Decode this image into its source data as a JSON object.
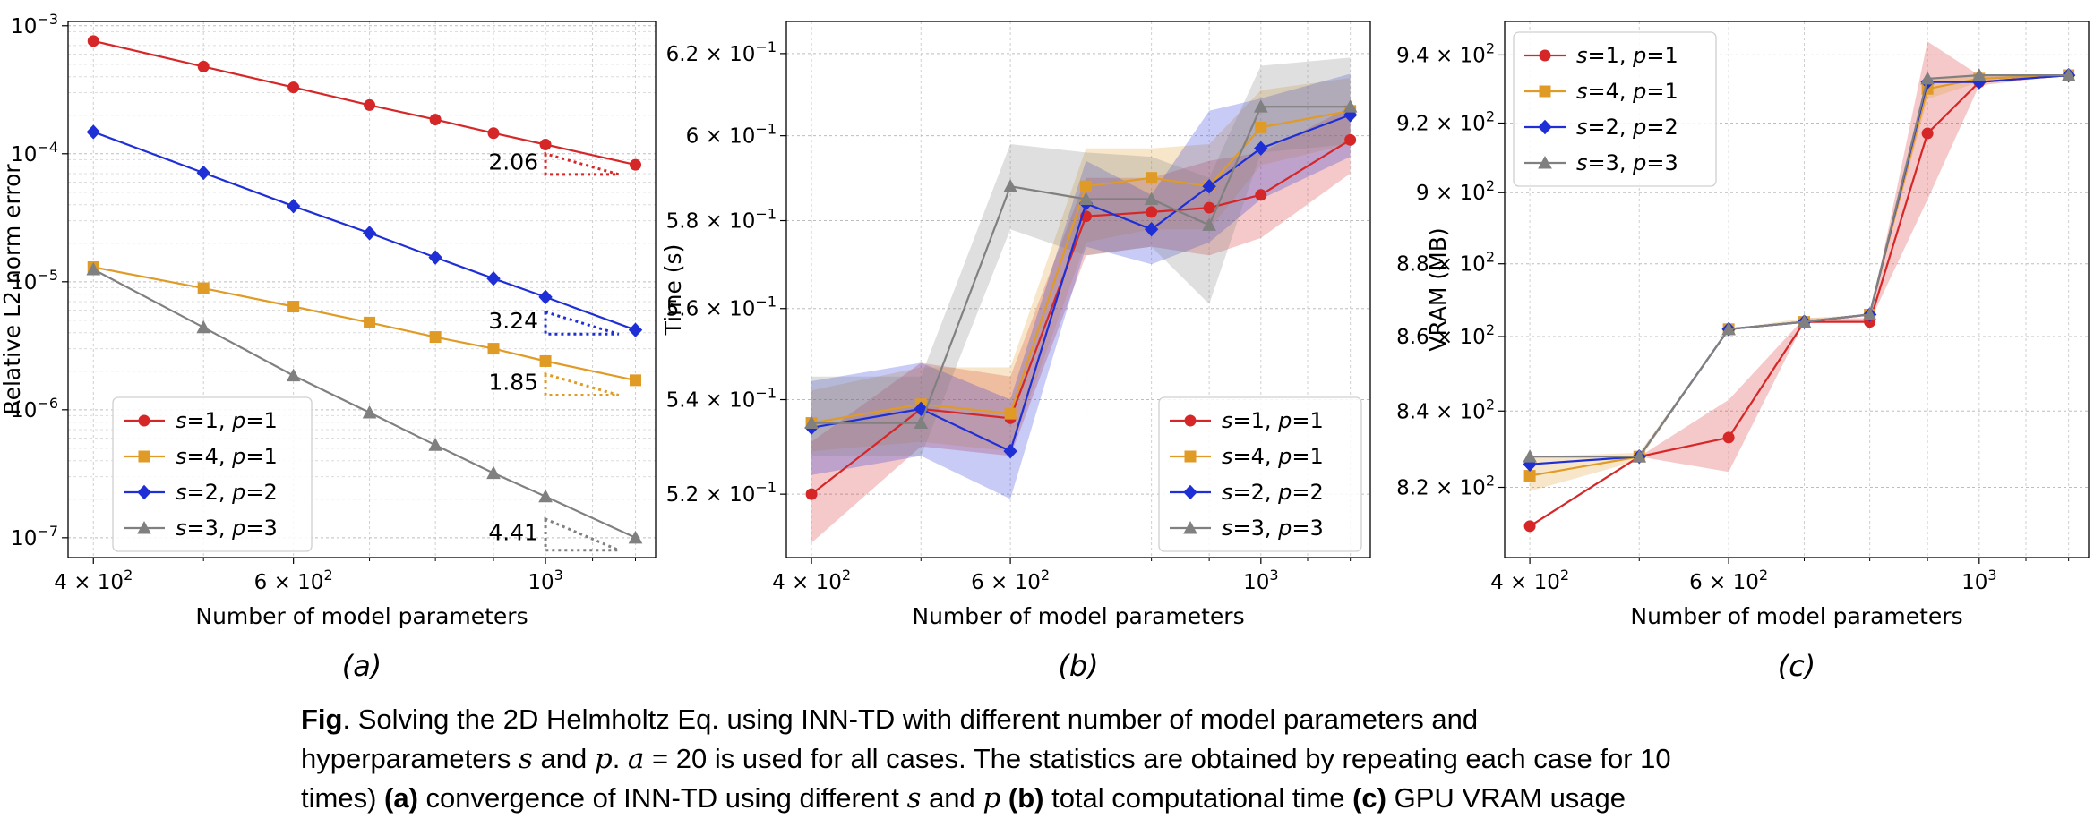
{
  "chart_data": [
    {
      "type": "line",
      "panel_label": "(a)",
      "xlabel": "Number of model parameters",
      "ylabel": "Relative L2 norm error",
      "xscale": "log",
      "yscale": "log",
      "xlim": [
        380,
        1250
      ],
      "ylim": [
        7e-08,
        0.00108
      ],
      "xticks": [
        {
          "v": 400,
          "m": "4",
          "e": "2"
        },
        {
          "v": 600,
          "m": "6",
          "e": "2"
        },
        {
          "v": 1000,
          "m": "",
          "e": "3"
        }
      ],
      "yticks": [
        {
          "v": 1e-07,
          "m": "",
          "e": "−7"
        },
        {
          "v": 1e-06,
          "m": "",
          "e": "−6"
        },
        {
          "v": 1e-05,
          "m": "",
          "e": "−5"
        },
        {
          "v": 0.0001,
          "m": "",
          "e": "−4"
        },
        {
          "v": 0.001,
          "m": "",
          "e": "−3"
        }
      ],
      "grid": true,
      "minor_grid_y": true,
      "legend_position": "lower-left",
      "x": [
        400,
        500,
        600,
        700,
        800,
        900,
        1000,
        1200
      ],
      "series": [
        {
          "name": "s=1, p=1",
          "s": "1",
          "p": "1",
          "color": "#d62728",
          "marker": "circle",
          "values": [
            0.00076,
            0.00048,
            0.00033,
            0.00024,
            0.000185,
            0.000145,
            0.000118,
            8.2e-05
          ]
        },
        {
          "name": "s=4, p=1",
          "s": "4",
          "p": "1",
          "color": "#e09b26",
          "marker": "square",
          "values": [
            1.3e-05,
            8.9e-06,
            6.4e-06,
            4.8e-06,
            3.7e-06,
            3e-06,
            2.4e-06,
            1.7e-06
          ]
        },
        {
          "name": "s=2, p=2",
          "s": "2",
          "p": "2",
          "color": "#1f2fd6",
          "marker": "diamond",
          "values": [
            0.000148,
            7.1e-05,
            3.9e-05,
            2.4e-05,
            1.55e-05,
            1.06e-05,
            7.6e-06,
            4.2e-06
          ]
        },
        {
          "name": "s=3, p=3",
          "s": "3",
          "p": "3",
          "color": "#808080",
          "marker": "triangle",
          "values": [
            1.25e-05,
            4.4e-06,
            1.85e-06,
            9.5e-07,
            5.3e-07,
            3.2e-07,
            2.1e-07,
            1e-07
          ]
        }
      ],
      "slope_annotations": [
        {
          "text": "2.06",
          "series": 0,
          "y_top": 0.0001,
          "y_bottom": 6.9e-05
        },
        {
          "text": "3.24",
          "series": 2,
          "y_top": 5.8e-06,
          "y_bottom": 3.9e-06
        },
        {
          "text": "1.85",
          "series": 1,
          "y_top": 1.9e-06,
          "y_bottom": 1.3e-06
        },
        {
          "text": "4.41",
          "series": 3,
          "y_top": 1.4e-07,
          "y_bottom": 8e-08
        }
      ]
    },
    {
      "type": "line",
      "panel_label": "(b)",
      "xlabel": "Number of model parameters",
      "ylabel": "Time (s)",
      "xscale": "log",
      "yscale": "log",
      "xlim": [
        380,
        1250
      ],
      "ylim": [
        0.507,
        0.628
      ],
      "xticks": [
        {
          "v": 400,
          "m": "4",
          "e": "2"
        },
        {
          "v": 600,
          "m": "6",
          "e": "2"
        },
        {
          "v": 1000,
          "m": "",
          "e": "3"
        }
      ],
      "yticks": [
        {
          "v": 0.52,
          "m": "5.2",
          "e": "−1"
        },
        {
          "v": 0.54,
          "m": "5.4",
          "e": "−1"
        },
        {
          "v": 0.56,
          "m": "5.6",
          "e": "−1"
        },
        {
          "v": 0.58,
          "m": "5.8",
          "e": "−1"
        },
        {
          "v": 0.6,
          "m": "6",
          "e": "−1"
        },
        {
          "v": 0.62,
          "m": "6.2",
          "e": "−1"
        }
      ],
      "grid": true,
      "legend_position": "lower-right",
      "x": [
        400,
        500,
        600,
        700,
        800,
        900,
        1000,
        1200
      ],
      "series": [
        {
          "name": "s=1, p=1",
          "s": "1",
          "p": "1",
          "color": "#d62728",
          "marker": "circle",
          "values": [
            0.52,
            0.538,
            0.536,
            0.581,
            0.582,
            0.583,
            0.586,
            0.599
          ],
          "lower": [
            0.51,
            0.53,
            0.528,
            0.572,
            0.574,
            0.572,
            0.576,
            0.591
          ],
          "upper": [
            0.531,
            0.548,
            0.545,
            0.59,
            0.59,
            0.594,
            0.596,
            0.607
          ]
        },
        {
          "name": "s=4, p=1",
          "s": "4",
          "p": "1",
          "color": "#e09b26",
          "marker": "square",
          "values": [
            0.535,
            0.539,
            0.537,
            0.588,
            0.59,
            0.588,
            0.602,
            0.606
          ],
          "lower": [
            0.529,
            0.531,
            0.529,
            0.575,
            0.578,
            0.578,
            0.593,
            0.598
          ],
          "upper": [
            0.542,
            0.547,
            0.547,
            0.597,
            0.597,
            0.598,
            0.611,
            0.614
          ]
        },
        {
          "name": "s=2, p=2",
          "s": "2",
          "p": "2",
          "color": "#1f2fd6",
          "marker": "diamond",
          "values": [
            0.534,
            0.538,
            0.529,
            0.584,
            0.578,
            0.588,
            0.597,
            0.605
          ],
          "lower": [
            0.524,
            0.528,
            0.519,
            0.574,
            0.57,
            0.575,
            0.585,
            0.595
          ],
          "upper": [
            0.544,
            0.548,
            0.54,
            0.594,
            0.586,
            0.606,
            0.609,
            0.615
          ]
        },
        {
          "name": "s=3, p=3",
          "s": "3",
          "p": "3",
          "color": "#808080",
          "marker": "triangle",
          "values": [
            0.535,
            0.535,
            0.588,
            0.585,
            0.585,
            0.579,
            0.607,
            0.607
          ],
          "lower": [
            0.528,
            0.528,
            0.578,
            0.572,
            0.574,
            0.561,
            0.596,
            0.598
          ],
          "upper": [
            0.545,
            0.545,
            0.598,
            0.596,
            0.595,
            0.59,
            0.617,
            0.619
          ]
        }
      ]
    },
    {
      "type": "line",
      "panel_label": "(c)",
      "xlabel": "Number of model parameters",
      "ylabel": "VRAM (MB)",
      "xscale": "log",
      "yscale": "log",
      "xlim": [
        380,
        1250
      ],
      "ylim": [
        802,
        950
      ],
      "xticks": [
        {
          "v": 400,
          "m": "4",
          "e": "2"
        },
        {
          "v": 600,
          "m": "6",
          "e": "2"
        },
        {
          "v": 1000,
          "m": "",
          "e": "3"
        }
      ],
      "yticks": [
        {
          "v": 820,
          "m": "8.2",
          "e": "2"
        },
        {
          "v": 840,
          "m": "8.4",
          "e": "2"
        },
        {
          "v": 860,
          "m": "8.6",
          "e": "2"
        },
        {
          "v": 880,
          "m": "8.8",
          "e": "2"
        },
        {
          "v": 900,
          "m": "9",
          "e": "2"
        },
        {
          "v": 920,
          "m": "9.2",
          "e": "2"
        },
        {
          "v": 940,
          "m": "9.4",
          "e": "2"
        }
      ],
      "grid": true,
      "legend_position": "upper-left",
      "x": [
        400,
        500,
        600,
        700,
        800,
        900,
        1000,
        1200
      ],
      "series": [
        {
          "name": "s=1, p=1",
          "s": "1",
          "p": "1",
          "color": "#d62728",
          "marker": "circle",
          "values": [
            810,
            828,
            833,
            864,
            864,
            917,
            932,
            934
          ],
          "lower": [
            810,
            828,
            824,
            864,
            864,
            898,
            931,
            934
          ],
          "upper": [
            810,
            828,
            843,
            865,
            865,
            944,
            934,
            934
          ]
        },
        {
          "name": "s=4, p=1",
          "s": "4",
          "p": "1",
          "color": "#e09b26",
          "marker": "square",
          "values": [
            823,
            828,
            862,
            864,
            866,
            930,
            933,
            934
          ],
          "lower": [
            819,
            827,
            862,
            864,
            866,
            927,
            932,
            934
          ],
          "upper": [
            828,
            829,
            862,
            865,
            866,
            933,
            934,
            934
          ]
        },
        {
          "name": "s=2, p=2",
          "s": "2",
          "p": "2",
          "color": "#1f2fd6",
          "marker": "diamond",
          "values": [
            826,
            828,
            862,
            864,
            866,
            932,
            932,
            934
          ]
        },
        {
          "name": "s=3, p=3",
          "s": "3",
          "p": "3",
          "color": "#808080",
          "marker": "triangle",
          "values": [
            828,
            828,
            862,
            864,
            866,
            933,
            934,
            934
          ]
        }
      ]
    }
  ],
  "caption": {
    "fig": "Fig",
    "line1": ". Solving the 2D Helmholtz Eq. using INN-TD with different number of model parameters and",
    "line2_a": "hyperparameters ",
    "line2_s": "s",
    "line2_b": " and ",
    "line2_p": "p",
    "line2_c": ". ",
    "line2_a_sym": "a",
    "line2_d": " = 20 is used for all cases. The statistics are obtained by repeating each case for 10",
    "line3_a": "times) ",
    "label_a": "(a)",
    "line3_b": " convergence of INN-TD using different ",
    "line3_s": "s",
    "line3_c": " and ",
    "line3_p": "p",
    "label_b": " (b)",
    "line3_d": " total computational time ",
    "label_c": "(c)",
    "line3_e": " GPU VRAM usage"
  }
}
